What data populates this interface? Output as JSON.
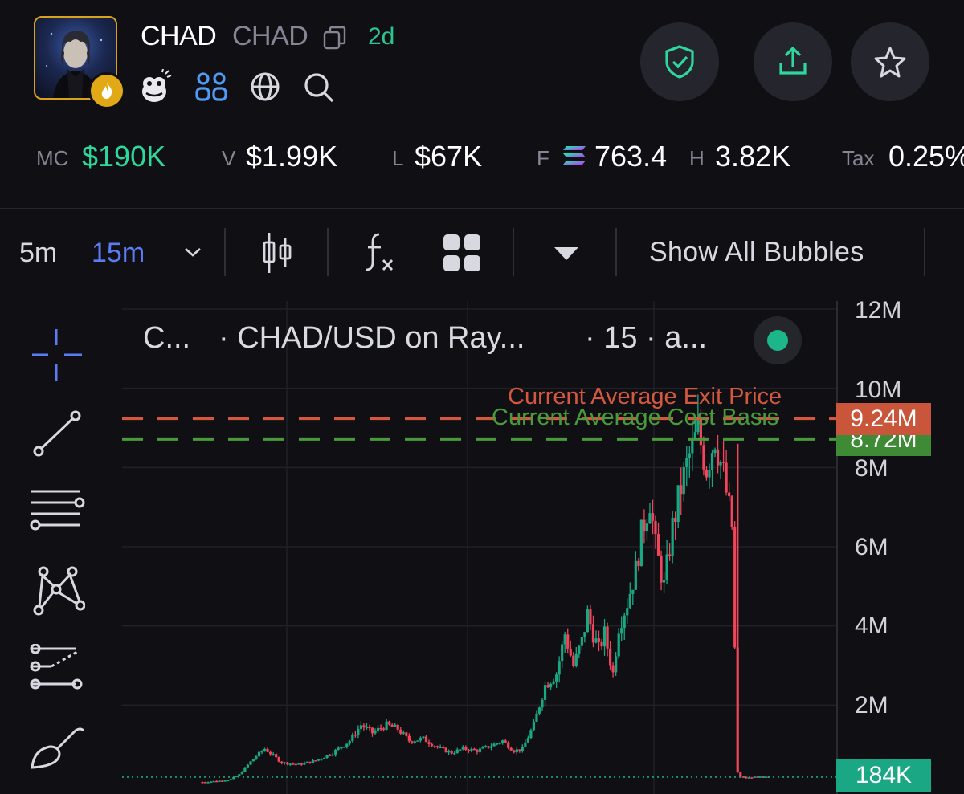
{
  "token": {
    "name": "CHAD",
    "symbol": "CHAD",
    "age": "2d"
  },
  "stats": [
    {
      "label": "MC",
      "value": "$190K"
    },
    {
      "label": "V",
      "value": "$1.99K"
    },
    {
      "label": "L",
      "value": "$67K"
    },
    {
      "label": "F",
      "value": "763.4"
    },
    {
      "label": "H",
      "value": "3.82K"
    },
    {
      "label": "Tax",
      "value": "0.25%"
    }
  ],
  "toolbar": {
    "timeframes": [
      "5m",
      "15m"
    ],
    "active_timeframe": "15m",
    "show_bubbles": "Show All Bubbles"
  },
  "chart": {
    "legend_short": "C...",
    "legend_pair": "· CHAD/USD on Ray...",
    "legend_interval": "· 15 · a...",
    "exit_label": "Current Average Exit Price",
    "cost_label": "Current Average Cost Basis",
    "exit_value": "9.24M",
    "cost_value": "8.72M",
    "current_value": "184K",
    "y_ticks": [
      "12M",
      "10M",
      "8M",
      "6M",
      "4M",
      "2M"
    ]
  },
  "colors": {
    "accent_green": "#2ed79b",
    "up_candle": "#1aa884",
    "down_candle": "#f0455a",
    "exit_line": "#d4583f",
    "cost_line": "#4a9a3c",
    "active_tf": "#5b7cf5"
  },
  "icons": [
    "copy-icon",
    "pepe-icon",
    "community-icon",
    "globe-icon",
    "search-icon",
    "shield-icon",
    "share-icon",
    "star-icon",
    "candle-icon",
    "indicator-icon",
    "layout-icon",
    "crosshair-icon",
    "trendline-icon",
    "fib-icon",
    "pattern-icon",
    "prediction-icon",
    "brush-icon"
  ],
  "chart_data": {
    "type": "candlestick",
    "ylabel": "",
    "yticks": [
      2000000,
      4000000,
      6000000,
      8000000,
      10000000,
      12000000
    ],
    "ylim": [
      0,
      12000000
    ],
    "series": [
      {
        "name": "price",
        "x_index": [
          0,
          6,
          10,
          13,
          18,
          22,
          28,
          34,
          40,
          46,
          52,
          56,
          60,
          65,
          69,
          73,
          78,
          84,
          88,
          92,
          97,
          101,
          106,
          110,
          113,
          117,
          121,
          125,
          128,
          131,
          134,
          136,
          138,
          140,
          142,
          145,
          147,
          150,
          153,
          155,
          158,
          160,
          163,
          166,
          169,
          172,
          175,
          178,
          181,
          184,
          187,
          189,
          190,
          192,
          194,
          197,
          200
        ],
        "values": [
          60000,
          90000,
          130000,
          250000,
          650000,
          900000,
          550000,
          500000,
          600000,
          800000,
          1100000,
          1500000,
          1300000,
          1500000,
          1400000,
          1100000,
          1150000,
          900000,
          800000,
          900000,
          850000,
          950000,
          1100000,
          850000,
          900000,
          1500000,
          2500000,
          2800000,
          3800000,
          3000000,
          3600000,
          4300000,
          3800000,
          3400000,
          3800000,
          2800000,
          4000000,
          4600000,
          5400000,
          6300000,
          7200000,
          6000000,
          5000000,
          6500000,
          7500000,
          8300000,
          8900000,
          8000000,
          8800000,
          7800000,
          6500000,
          300000,
          200000,
          160000,
          180000,
          184000,
          184000
        ]
      }
    ],
    "annotations": [
      {
        "label": "Current Average Exit Price",
        "y": 9240000
      },
      {
        "label": "Current Average Cost Basis",
        "y": 8720000
      }
    ]
  }
}
